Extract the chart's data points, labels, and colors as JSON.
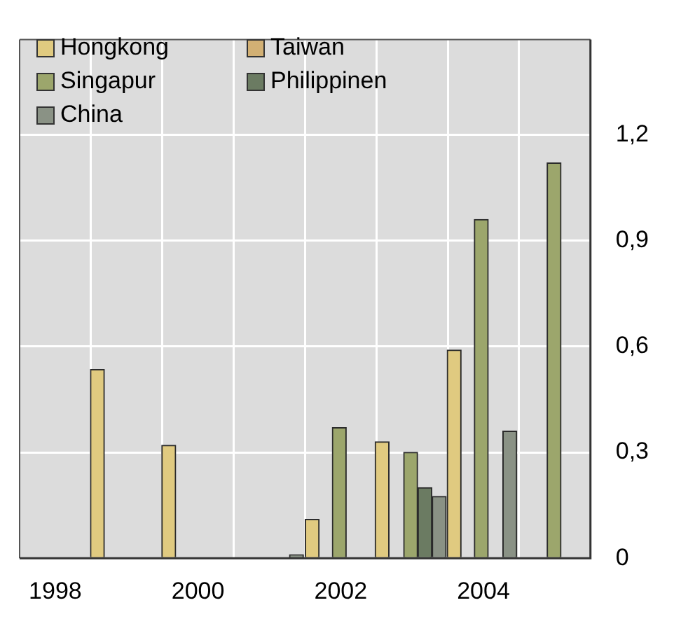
{
  "chart_data": {
    "type": "bar",
    "xlim": [
      1998,
      2006
    ],
    "xticks": [
      {
        "value": 1998,
        "label": null
      },
      {
        "value": 1998.5,
        "label": "1998"
      },
      {
        "value": 1999,
        "label": null
      },
      {
        "value": 2000,
        "label": null
      },
      {
        "value": 2000.5,
        "label": "2000"
      },
      {
        "value": 2001,
        "label": null
      },
      {
        "value": 2002,
        "label": null
      },
      {
        "value": 2002.5,
        "label": "2002"
      },
      {
        "value": 2003,
        "label": null
      },
      {
        "value": 2004,
        "label": null
      },
      {
        "value": 2004.5,
        "label": "2004"
      },
      {
        "value": 2005,
        "label": null
      },
      {
        "value": 2006,
        "label": null
      }
    ],
    "ylim": [
      0,
      1.47
    ],
    "yticks": [
      0,
      {
        "value": 0.3,
        "label": "0,3"
      },
      {
        "value": 0.6,
        "label": "0,6"
      },
      {
        "value": 0.9,
        "label": "0,9"
      },
      {
        "value": 1.2,
        "label": "1,2"
      }
    ],
    "grid": true,
    "legend": "top left",
    "series": [
      {
        "name": "Hongkong",
        "color": "#e0ca80",
        "x": [
          1999.09,
          2000.09,
          2002.1,
          2003.08,
          2004.09
        ],
        "values": [
          0.535,
          0.32,
          0.11,
          0.33,
          0.59
        ]
      },
      {
        "name": "Taiwan",
        "color": "#d2b074"
      },
      {
        "name": "Singapur",
        "color": "#9ca66c",
        "x": [
          2002.48,
          2003.48,
          2004.47,
          2005.49
        ],
        "values": [
          0.37,
          0.3,
          0.96,
          1.12
        ]
      },
      {
        "name": "Philippinen",
        "color": "#6b7b62",
        "x": [
          2003.68
        ],
        "values": [
          0.2
        ]
      },
      {
        "name": "China",
        "color": "#8a9285",
        "x": [
          2001.88,
          2003.88,
          2004.87
        ],
        "values": [
          0.01,
          0.175,
          0.36
        ]
      }
    ]
  }
}
